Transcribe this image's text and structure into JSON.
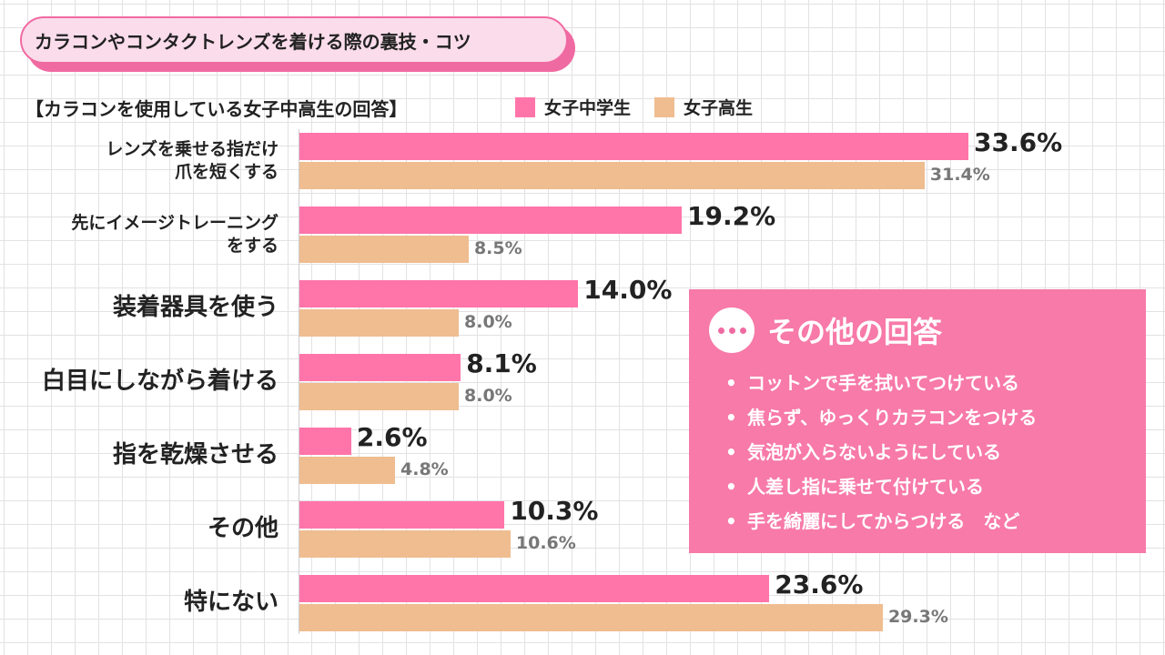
{
  "title": "カラコンやコンタクトレンズを着ける際の裏技・コツ",
  "subtitle": "【カラコンを使用している女子中高生の回答】",
  "colors": {
    "jhs": "#ff75aa",
    "hs": "#efbd90",
    "accent": "#f06aa2"
  },
  "chart_data": {
    "type": "bar",
    "orientation": "horizontal",
    "categories": [
      [
        "レンズを乗せる指だけ",
        "爪を短くする"
      ],
      [
        "先にイメージトレーニング",
        "をする"
      ],
      [
        "装着器具を使う"
      ],
      [
        "白目にしながら着ける"
      ],
      [
        "指を乾燥させる"
      ],
      [
        "その他"
      ],
      [
        "特にない"
      ]
    ],
    "series": [
      {
        "name": "女子中学生",
        "values": [
          33.6,
          19.2,
          14.0,
          8.1,
          2.6,
          10.3,
          23.6
        ],
        "labels": [
          "33.6%",
          "19.2%",
          "14.0%",
          "8.1%",
          "2.6%",
          "10.3%",
          "23.6%"
        ]
      },
      {
        "name": "女子高生",
        "values": [
          31.4,
          8.5,
          8.0,
          8.0,
          4.8,
          10.6,
          29.3
        ],
        "labels": [
          "31.4%",
          "8.5%",
          "8.0%",
          "8.0%",
          "4.8%",
          "10.6%",
          "29.3%"
        ]
      }
    ],
    "xlim": [
      0,
      40
    ],
    "legend": "top"
  },
  "other_answers": {
    "title": "その他の回答",
    "icon": "dots-icon",
    "items": [
      "コットンで手を拭いてつけている",
      "焦らず、ゆっくりカラコンをつける",
      "気泡が入らないようにしている",
      "人差し指に乗せて付けている",
      "手を綺麗にしてからつける　など"
    ]
  }
}
